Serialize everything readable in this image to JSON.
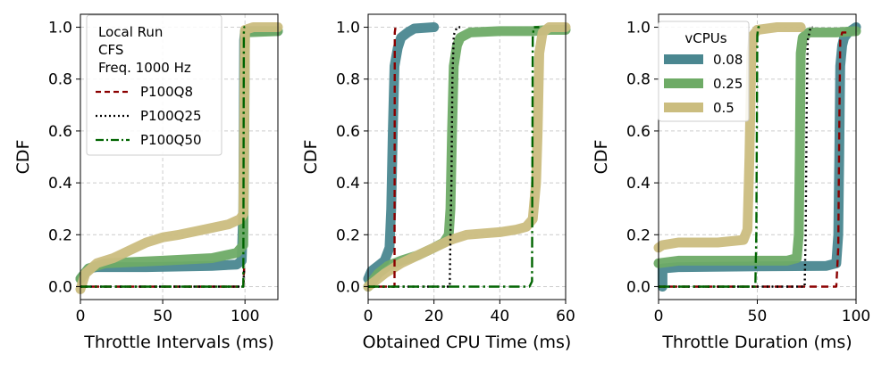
{
  "chart_data": [
    {
      "type": "line",
      "panel": "left",
      "xlabel": "Throttle Intervals (ms)",
      "ylabel": "CDF",
      "xlim": [
        0,
        120
      ],
      "ylim": [
        -0.05,
        1.05
      ],
      "xticks": [
        0,
        50,
        100
      ],
      "yticks": [
        0.0,
        0.2,
        0.4,
        0.6,
        0.8,
        1.0
      ],
      "grid": true,
      "legend_title_lines": [
        "Local Run",
        "CFS",
        "Freq. 1000 Hz"
      ],
      "legend_position": "top-left",
      "series": [
        {
          "name": "0.08",
          "kind": "vcpu",
          "color": "#4a8790",
          "points": [
            [
              0,
              0.03
            ],
            [
              5,
              0.07
            ],
            [
              10,
              0.075
            ],
            [
              40,
              0.075
            ],
            [
              80,
              0.08
            ],
            [
              95,
              0.085
            ],
            [
              98,
              0.1
            ],
            [
              99,
              0.3
            ],
            [
              99.5,
              0.95
            ],
            [
              100,
              0.985
            ],
            [
              120,
              0.985
            ]
          ]
        },
        {
          "name": "0.25",
          "kind": "vcpu",
          "color": "#6eab66",
          "points": [
            [
              0,
              0.03
            ],
            [
              5,
              0.07
            ],
            [
              15,
              0.09
            ],
            [
              50,
              0.1
            ],
            [
              80,
              0.11
            ],
            [
              95,
              0.13
            ],
            [
              99,
              0.16
            ],
            [
              99.5,
              0.5
            ],
            [
              100,
              0.98
            ],
            [
              120,
              0.985
            ]
          ]
        },
        {
          "name": "0.5",
          "kind": "vcpu",
          "color": "#cbbd7f",
          "points": [
            [
              0,
              -0.01
            ],
            [
              3,
              0.05
            ],
            [
              10,
              0.09
            ],
            [
              20,
              0.11
            ],
            [
              30,
              0.14
            ],
            [
              40,
              0.17
            ],
            [
              50,
              0.19
            ],
            [
              60,
              0.2
            ],
            [
              75,
              0.22
            ],
            [
              90,
              0.24
            ],
            [
              97,
              0.26
            ],
            [
              99,
              0.28
            ],
            [
              100,
              0.99
            ],
            [
              105,
              1.0
            ],
            [
              120,
              1.0
            ]
          ]
        },
        {
          "name": "P100Q8",
          "kind": "quota",
          "style": "dashed",
          "color": "#8b0000",
          "points": [
            [
              0,
              0
            ],
            [
              40,
              0
            ],
            [
              99,
              0
            ],
            [
              99.5,
              0.07
            ],
            [
              100,
              0.07
            ]
          ]
        },
        {
          "name": "P100Q25",
          "kind": "quota",
          "style": "dotted",
          "color": "#000000",
          "points": [
            [
              0,
              0
            ],
            [
              99,
              0
            ],
            [
              99.5,
              0.07
            ],
            [
              100,
              0.07
            ]
          ]
        },
        {
          "name": "P100Q50",
          "kind": "quota",
          "style": "dashdot",
          "color": "#006400",
          "points": [
            [
              0,
              0
            ],
            [
              99,
              0
            ],
            [
              99.3,
              0.98
            ],
            [
              99.6,
              1.0
            ],
            [
              100,
              1.0
            ]
          ]
        }
      ]
    },
    {
      "type": "line",
      "panel": "middle",
      "xlabel": "Obtained CPU Time (ms)",
      "ylabel": "CDF",
      "xlim": [
        0,
        60
      ],
      "ylim": [
        -0.05,
        1.05
      ],
      "xticks": [
        0,
        20,
        40,
        60
      ],
      "yticks": [
        0.0,
        0.2,
        0.4,
        0.6,
        0.8,
        1.0
      ],
      "grid": true,
      "series": [
        {
          "name": "0.08",
          "color": "#4a8790",
          "points": [
            [
              0,
              0.03
            ],
            [
              1,
              0.06
            ],
            [
              3,
              0.08
            ],
            [
              5,
              0.1
            ],
            [
              6.5,
              0.15
            ],
            [
              7,
              0.3
            ],
            [
              7.5,
              0.6
            ],
            [
              8,
              0.85
            ],
            [
              9,
              0.92
            ],
            [
              10,
              0.96
            ],
            [
              12,
              0.98
            ],
            [
              14,
              0.995
            ],
            [
              20,
              1.0
            ]
          ]
        },
        {
          "name": "0.25",
          "color": "#6eab66",
          "points": [
            [
              0,
              0.0
            ],
            [
              3,
              0.05
            ],
            [
              6,
              0.08
            ],
            [
              10,
              0.1
            ],
            [
              15,
              0.12
            ],
            [
              20,
              0.15
            ],
            [
              23,
              0.17
            ],
            [
              24.5,
              0.2
            ],
            [
              25,
              0.3
            ],
            [
              25.5,
              0.6
            ],
            [
              26,
              0.85
            ],
            [
              27,
              0.93
            ],
            [
              28,
              0.96
            ],
            [
              31,
              0.98
            ],
            [
              40,
              0.985
            ],
            [
              50,
              0.985
            ],
            [
              55,
              0.99
            ],
            [
              60,
              0.99
            ]
          ]
        },
        {
          "name": "0.5",
          "color": "#cbbd7f",
          "points": [
            [
              0,
              0.0
            ],
            [
              5,
              0.05
            ],
            [
              10,
              0.09
            ],
            [
              15,
              0.12
            ],
            [
              20,
              0.15
            ],
            [
              25,
              0.18
            ],
            [
              30,
              0.2
            ],
            [
              35,
              0.205
            ],
            [
              40,
              0.21
            ],
            [
              45,
              0.22
            ],
            [
              48,
              0.23
            ],
            [
              50,
              0.26
            ],
            [
              51,
              0.4
            ],
            [
              51.5,
              0.6
            ],
            [
              52,
              0.9
            ],
            [
              53,
              0.98
            ],
            [
              55,
              1.0
            ],
            [
              60,
              1.0
            ]
          ]
        },
        {
          "name": "P100Q8",
          "style": "dashed",
          "color": "#8b0000",
          "points": [
            [
              0,
              0
            ],
            [
              8,
              0
            ],
            [
              8.1,
              0.98
            ],
            [
              8.3,
              1.0
            ]
          ]
        },
        {
          "name": "P100Q25",
          "style": "dotted",
          "color": "#000000",
          "points": [
            [
              0,
              0
            ],
            [
              24.8,
              0
            ],
            [
              25,
              0.2
            ],
            [
              25.3,
              0.4
            ],
            [
              25.6,
              0.8
            ],
            [
              26,
              0.97
            ],
            [
              27,
              1.0
            ],
            [
              28,
              1.0
            ]
          ]
        },
        {
          "name": "P100Q50",
          "style": "dashdot",
          "color": "#006400",
          "points": [
            [
              0,
              0
            ],
            [
              49,
              0
            ],
            [
              49.8,
              0.02
            ],
            [
              50,
              0.96
            ],
            [
              50.3,
              1.0
            ],
            [
              52,
              1.0
            ]
          ]
        }
      ]
    },
    {
      "type": "line",
      "panel": "right",
      "xlabel": "Throttle Duration (ms)",
      "ylabel": "CDF",
      "xlim": [
        0,
        100
      ],
      "ylim": [
        -0.05,
        1.05
      ],
      "xticks": [
        0,
        50,
        100
      ],
      "yticks": [
        0.0,
        0.2,
        0.4,
        0.6,
        0.8,
        1.0
      ],
      "grid": true,
      "legend_title": "vCPUs",
      "legend_entries": [
        "0.08",
        "0.25",
        "0.5"
      ],
      "legend_position": "top-left",
      "series": [
        {
          "name": "0.08",
          "color": "#4a8790",
          "points": [
            [
              2,
              0
            ],
            [
              2,
              0.07
            ],
            [
              10,
              0.075
            ],
            [
              50,
              0.078
            ],
            [
              85,
              0.08
            ],
            [
              90,
              0.09
            ],
            [
              91,
              0.2
            ],
            [
              91.5,
              0.5
            ],
            [
              92,
              0.85
            ],
            [
              93,
              0.93
            ],
            [
              94,
              0.96
            ],
            [
              96,
              0.98
            ],
            [
              100,
              1.0
            ]
          ]
        },
        {
          "name": "0.25",
          "color": "#6eab66",
          "points": [
            [
              0,
              0.09
            ],
            [
              10,
              0.1
            ],
            [
              40,
              0.1
            ],
            [
              65,
              0.1
            ],
            [
              70,
              0.11
            ],
            [
              71,
              0.2
            ],
            [
              71.5,
              0.5
            ],
            [
              72,
              0.9
            ],
            [
              73,
              0.96
            ],
            [
              76,
              0.98
            ],
            [
              90,
              0.98
            ],
            [
              100,
              0.985
            ]
          ]
        },
        {
          "name": "0.5",
          "color": "#cbbd7f",
          "points": [
            [
              0,
              0.15
            ],
            [
              2,
              0.16
            ],
            [
              10,
              0.17
            ],
            [
              30,
              0.17
            ],
            [
              43,
              0.18
            ],
            [
              45,
              0.22
            ],
            [
              46,
              0.5
            ],
            [
              47,
              0.9
            ],
            [
              48,
              0.97
            ],
            [
              50,
              0.99
            ],
            [
              60,
              1.0
            ],
            [
              72,
              1.0
            ]
          ]
        },
        {
          "name": "P100Q8",
          "style": "dashed",
          "color": "#8b0000",
          "points": [
            [
              0,
              0
            ],
            [
              90,
              0
            ],
            [
              91,
              0.15
            ],
            [
              91.5,
              0.6
            ],
            [
              92,
              0.95
            ],
            [
              93,
              0.98
            ],
            [
              96,
              0.98
            ]
          ]
        },
        {
          "name": "P100Q25",
          "style": "dotted",
          "color": "#000000",
          "points": [
            [
              0,
              0
            ],
            [
              74,
              0
            ],
            [
              74.5,
              0.2
            ],
            [
              75,
              0.7
            ],
            [
              75.5,
              0.95
            ],
            [
              77,
              1.0
            ],
            [
              78,
              1.0
            ]
          ]
        },
        {
          "name": "P100Q50",
          "style": "dashdot",
          "color": "#006400",
          "points": [
            [
              0,
              0
            ],
            [
              49,
              0
            ],
            [
              49.5,
              0.2
            ],
            [
              50,
              0.97
            ],
            [
              50.5,
              1.0
            ],
            [
              52,
              1.0
            ]
          ]
        }
      ]
    }
  ]
}
